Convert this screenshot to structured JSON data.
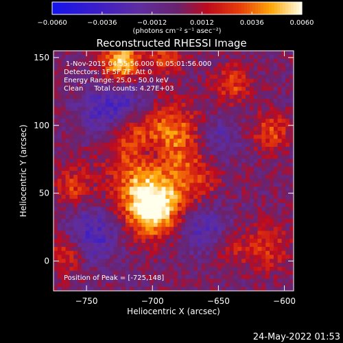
{
  "chart_data": {
    "type": "heatmap",
    "title": "Reconstructed RHESSI Image",
    "xlabel": "Heliocentric X (arcsec)",
    "ylabel": "Heliocentric Y (arcsec)",
    "xlim": [
      -775,
      -593
    ],
    "ylim": [
      -22,
      155
    ],
    "x_ticks": [
      -750,
      -700,
      -650,
      -600
    ],
    "x_tick_labels": [
      "−750",
      "−700",
      "−650",
      "−600"
    ],
    "y_ticks": [
      0,
      50,
      100,
      150
    ],
    "y_tick_labels": [
      "0",
      "50",
      "100",
      "150"
    ],
    "colorbar": {
      "min": -0.006,
      "max": 0.006,
      "tick_labels": [
        "−0.0060",
        "−0.0036",
        "−0.0012",
        "0.0012",
        "0.0036",
        "0.0060"
      ],
      "tick_values": [
        -0.006,
        -0.0036,
        -0.0012,
        0.0012,
        0.0036,
        0.006
      ],
      "unit_label": "(photons cm⁻² s⁻¹ asec⁻²)"
    },
    "annotations": {
      "line1": "1-Nov-2015 04:55:56.000 to 05:01:56.000",
      "line2": "Detectors: 1F 5F 7F, Att 0",
      "line3": "Energy Range: 25.0 - 50.0 keV",
      "line4": "Clean     Total counts: 4.27E+03",
      "peak": "Position of Peak = [-725,148]"
    },
    "sources": [
      {
        "x": -700,
        "y": 38,
        "amplitude": 0.0062,
        "sigma": 14
      },
      {
        "x": -710,
        "y": 62,
        "amplitude": 0.0032,
        "sigma": 18
      },
      {
        "x": -670,
        "y": 60,
        "amplitude": 0.0026,
        "sigma": 16
      },
      {
        "x": -683,
        "y": 95,
        "amplitude": 0.0034,
        "sigma": 15
      },
      {
        "x": -716,
        "y": 98,
        "amplitude": 0.0024,
        "sigma": 14
      },
      {
        "x": -724,
        "y": 147,
        "amplitude": 0.0056,
        "sigma": 10
      },
      {
        "x": -760,
        "y": 55,
        "amplitude": 0.0026,
        "sigma": 10
      },
      {
        "x": -765,
        "y": 5,
        "amplitude": 0.0026,
        "sigma": 10
      },
      {
        "x": -640,
        "y": 130,
        "amplitude": 0.0028,
        "sigma": 10
      },
      {
        "x": -610,
        "y": 95,
        "amplitude": 0.003,
        "sigma": 10
      },
      {
        "x": -612,
        "y": 10,
        "amplitude": 0.0024,
        "sigma": 12
      },
      {
        "x": -640,
        "y": 10,
        "amplitude": 0.002,
        "sigma": 10
      },
      {
        "x": -690,
        "y": 150,
        "amplitude": 0.0026,
        "sigma": 10
      },
      {
        "x": -700,
        "y": 80,
        "amplitude": -0.0022,
        "sigma": 8
      },
      {
        "x": -720,
        "y": 115,
        "amplitude": -0.003,
        "sigma": 12
      },
      {
        "x": -745,
        "y": 20,
        "amplitude": -0.003,
        "sigma": 14
      },
      {
        "x": -740,
        "y": 110,
        "amplitude": -0.0024,
        "sigma": 12
      },
      {
        "x": -660,
        "y": 25,
        "amplitude": -0.0026,
        "sigma": 14
      },
      {
        "x": -650,
        "y": 90,
        "amplitude": -0.002,
        "sigma": 12
      }
    ],
    "grid": false
  },
  "footer": {
    "timestamp": "24-May-2022 01:53"
  }
}
